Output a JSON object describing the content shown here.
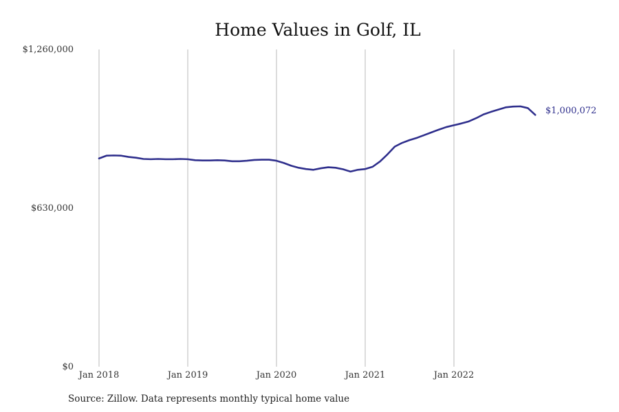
{
  "chart_data": {
    "type": "line",
    "title": "Home Values in Golf, IL",
    "xlabel": "",
    "ylabel": "",
    "x_tick_labels": [
      "Jan 2018",
      "Jan 2019",
      "Jan 2020",
      "Jan 2021",
      "Jan 2022"
    ],
    "y_tick_labels": [
      "$1,260,000",
      "$630,000",
      "$0"
    ],
    "y_ticks": [
      1260000,
      630000,
      0
    ],
    "ylim": [
      0,
      1260000
    ],
    "xlim": [
      "2018-01",
      "2022-12"
    ],
    "grid": "vertical",
    "line_color": "#2e2e8c",
    "end_label": "$1,000,072",
    "series": [
      {
        "x": [
          "2018-01",
          "2018-02",
          "2018-03",
          "2018-04",
          "2018-05",
          "2018-06",
          "2018-07",
          "2018-08",
          "2018-09",
          "2018-10",
          "2018-11",
          "2018-12",
          "2019-01",
          "2019-02",
          "2019-03",
          "2019-04",
          "2019-05",
          "2019-06",
          "2019-07",
          "2019-08",
          "2019-09",
          "2019-10",
          "2019-11",
          "2019-12",
          "2020-01",
          "2020-02",
          "2020-03",
          "2020-04",
          "2020-05",
          "2020-06",
          "2020-07",
          "2020-08",
          "2020-09",
          "2020-10",
          "2020-11",
          "2020-12",
          "2021-01",
          "2021-02",
          "2021-03",
          "2021-04",
          "2021-05",
          "2021-06",
          "2021-07",
          "2021-08",
          "2021-09",
          "2021-10",
          "2021-11",
          "2021-12",
          "2022-01",
          "2022-02",
          "2022-03",
          "2022-04",
          "2022-05",
          "2022-06",
          "2022-07",
          "2022-08",
          "2022-09",
          "2022-10",
          "2022-11",
          "2022-12"
        ],
        "values": [
          827000,
          838000,
          839000,
          838000,
          833000,
          830000,
          825000,
          824000,
          825000,
          824000,
          824000,
          825000,
          824000,
          820000,
          819000,
          819000,
          820000,
          819000,
          816000,
          816000,
          818000,
          821000,
          822000,
          822000,
          818000,
          809000,
          798000,
          790000,
          785000,
          782000,
          788000,
          792000,
          790000,
          784000,
          775000,
          782000,
          785000,
          794000,
          815000,
          843000,
          874000,
          889000,
          900000,
          909000,
          920000,
          931000,
          942000,
          952000,
          959000,
          966000,
          974000,
          987000,
          1002000,
          1012000,
          1021000,
          1030000,
          1033000,
          1034000,
          1027000,
          1000072
        ]
      }
    ],
    "source_note": "Source: Zillow. Data represents monthly typical home value"
  }
}
